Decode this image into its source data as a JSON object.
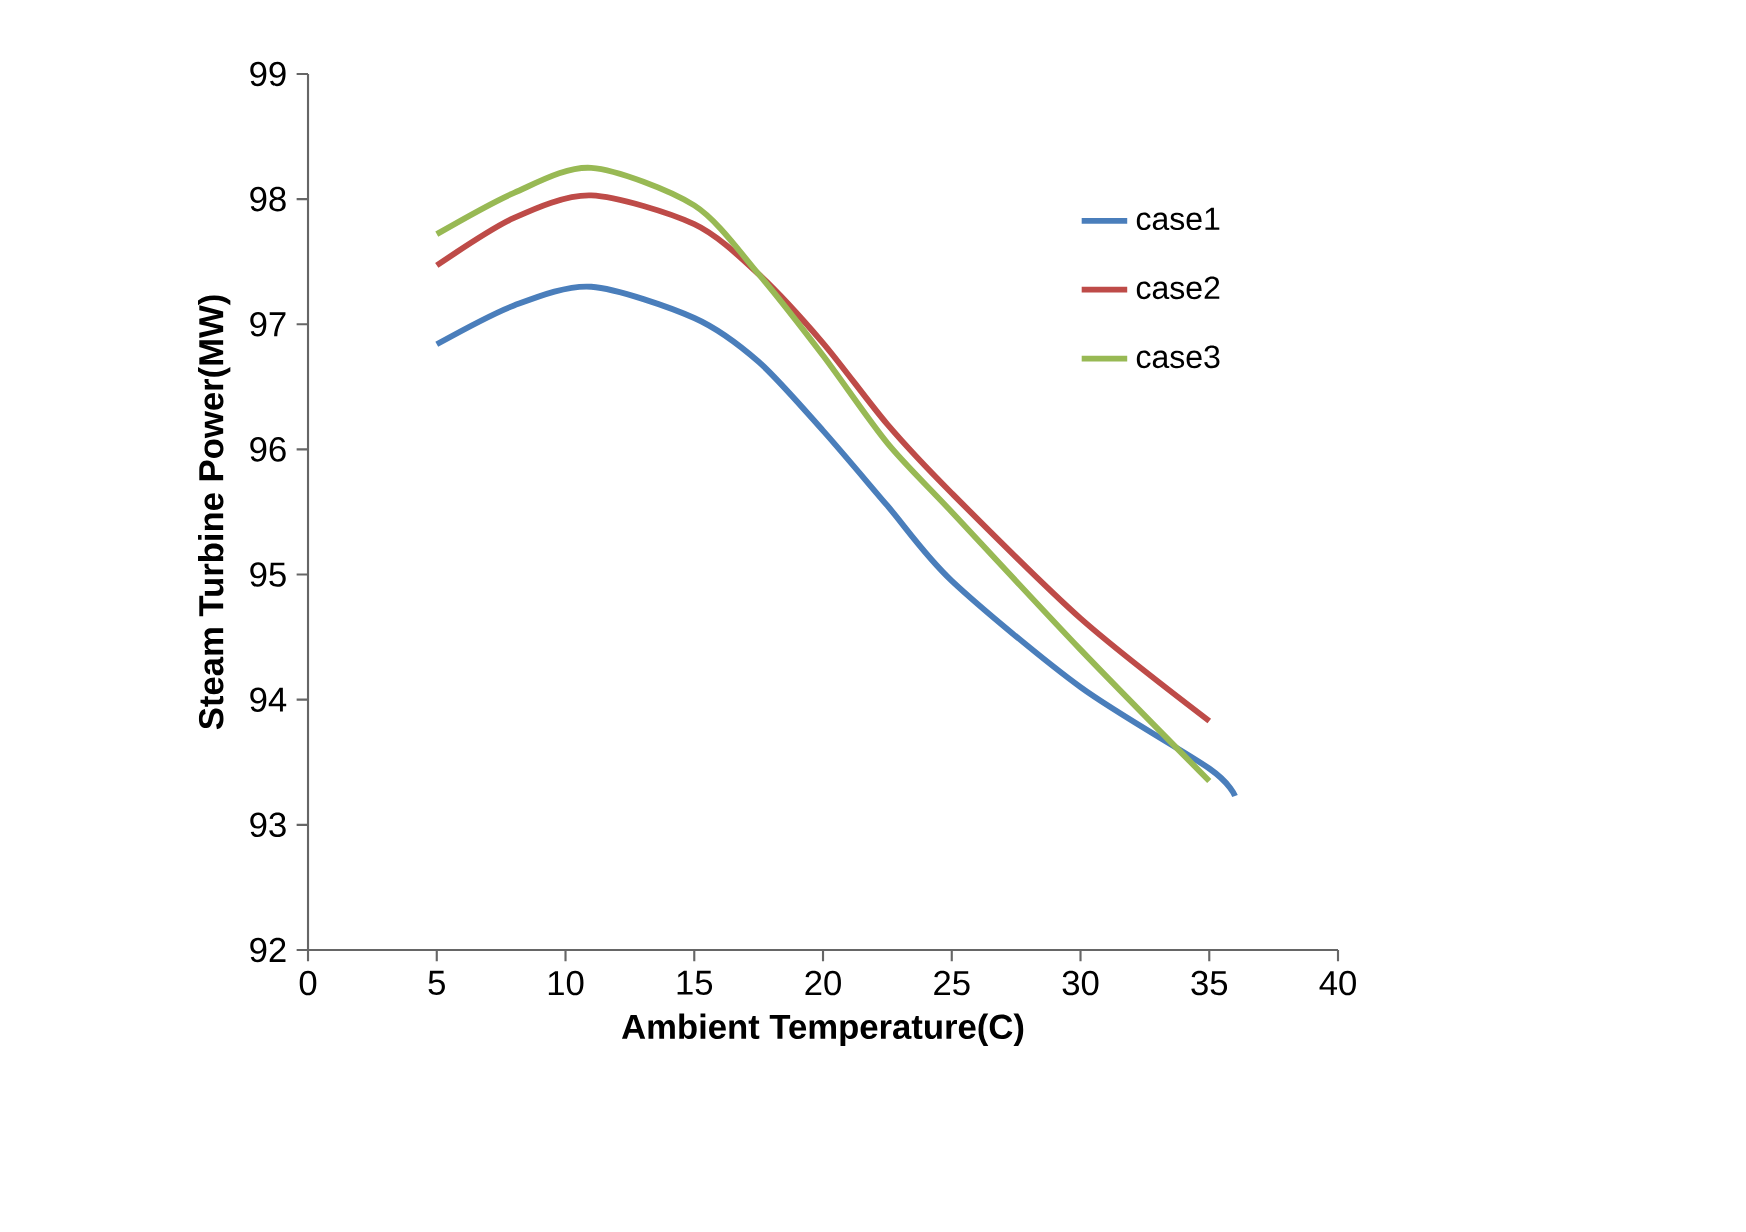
{
  "chart_data": {
    "type": "line",
    "xlabel": "Ambient Temperature(C)",
    "ylabel": "Steam Turbine Power(MW)",
    "xlim": [
      0,
      40
    ],
    "xticks": [
      0,
      5,
      10,
      15,
      20,
      25,
      30,
      35,
      40
    ],
    "ylim": [
      92,
      99
    ],
    "yticks": [
      92,
      93,
      94,
      95,
      96,
      97,
      98,
      99
    ],
    "legend": "right",
    "grid": false,
    "marker": "none",
    "line_style": "solid",
    "series": [
      {
        "name": "case1",
        "color": "#4a7ebb",
        "x": [
          5,
          8,
          11,
          15,
          17.5,
          20,
          22.5,
          25,
          30,
          35,
          36
        ],
        "values": [
          96.84,
          97.15,
          97.3,
          97.05,
          96.7,
          96.15,
          95.55,
          94.95,
          94.1,
          93.45,
          93.23
        ]
      },
      {
        "name": "case2",
        "color": "#be4b48",
        "x": [
          5,
          8,
          11,
          15,
          17.5,
          20,
          22.5,
          25,
          30,
          35
        ],
        "values": [
          97.47,
          97.85,
          98.03,
          97.8,
          97.4,
          96.85,
          96.2,
          95.65,
          94.65,
          93.83
        ]
      },
      {
        "name": "case3",
        "color": "#98b954",
        "x": [
          5,
          8,
          11,
          15,
          17.5,
          20,
          22.5,
          25,
          30,
          35
        ],
        "values": [
          97.72,
          98.05,
          98.25,
          97.95,
          97.4,
          96.75,
          96.05,
          95.5,
          94.4,
          93.35
        ]
      }
    ]
  }
}
